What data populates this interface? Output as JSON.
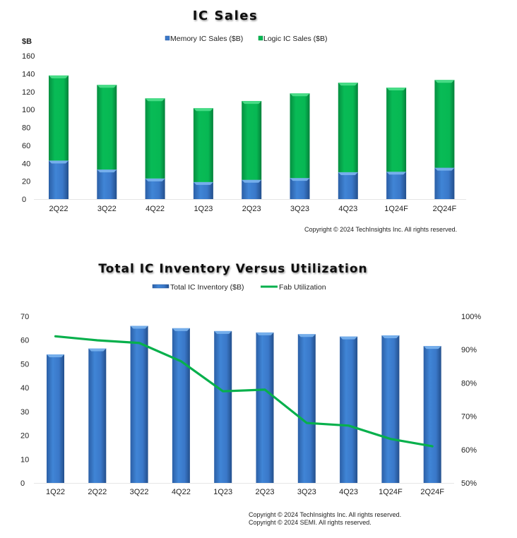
{
  "chart_data": [
    {
      "type": "bar",
      "stacked": true,
      "title": "IC Sales",
      "ylabel": "$B",
      "xlabel": "",
      "ylim": [
        0,
        160
      ],
      "yticks": [
        0,
        20,
        40,
        60,
        80,
        100,
        120,
        140,
        160
      ],
      "grid": false,
      "legend_position": "top-center",
      "categories": [
        "2Q22",
        "3Q22",
        "4Q22",
        "1Q23",
        "2Q23",
        "3Q23",
        "4Q23",
        "1Q24F",
        "2Q24F"
      ],
      "series": [
        {
          "name": "Memory IC Sales ($B)",
          "color": "#3a78c9",
          "values": [
            43,
            33,
            23,
            19,
            21.5,
            23.5,
            30,
            30.5,
            35
          ]
        },
        {
          "name": "Logic IC Sales ($B)",
          "color": "#07b853",
          "values": [
            95,
            94.5,
            89.5,
            82.5,
            88,
            94.5,
            100,
            94,
            98
          ]
        }
      ],
      "totals": [
        138,
        127.5,
        112.5,
        101.5,
        109.5,
        118,
        130,
        124.5,
        133
      ],
      "copyright": [
        "Copyright © 2024 TechInsights Inc.  All rights reserved."
      ]
    },
    {
      "type": "bar",
      "combo": "bar+line",
      "title": "Total IC Inventory Versus Utilization",
      "xlabel": "",
      "ylabel": "",
      "ylim": [
        0,
        70
      ],
      "yticks": [
        0,
        10,
        20,
        30,
        40,
        50,
        60,
        70
      ],
      "y2lim": [
        50,
        100
      ],
      "y2ticks": [
        "50%",
        "60%",
        "70%",
        "80%",
        "90%",
        "100%"
      ],
      "y2tick_values": [
        50,
        60,
        70,
        80,
        90,
        100
      ],
      "grid": false,
      "legend_position": "top-center",
      "categories": [
        "1Q22",
        "2Q22",
        "3Q22",
        "4Q22",
        "1Q23",
        "2Q23",
        "3Q23",
        "4Q23",
        "1Q24F",
        "2Q24F"
      ],
      "series": [
        {
          "name": "Total IC Inventory ($B)",
          "type": "bar",
          "axis": "left",
          "color": "#3a78c9",
          "values": [
            54,
            56.5,
            66,
            65,
            63.8,
            63.2,
            62.5,
            61.5,
            62,
            57.5
          ]
        },
        {
          "name": "Fab Utilization",
          "type": "line",
          "axis": "right",
          "unit": "%",
          "color": "#07b04c",
          "values": [
            94,
            92.8,
            92,
            86.5,
            77.5,
            78,
            68,
            67.2,
            63.2,
            61
          ]
        }
      ],
      "copyright": [
        "Copyright © 2024 TechInsights Inc.  All rights reserved.",
        "Copyright © 2024 SEMI.  All rights reserved."
      ]
    }
  ]
}
